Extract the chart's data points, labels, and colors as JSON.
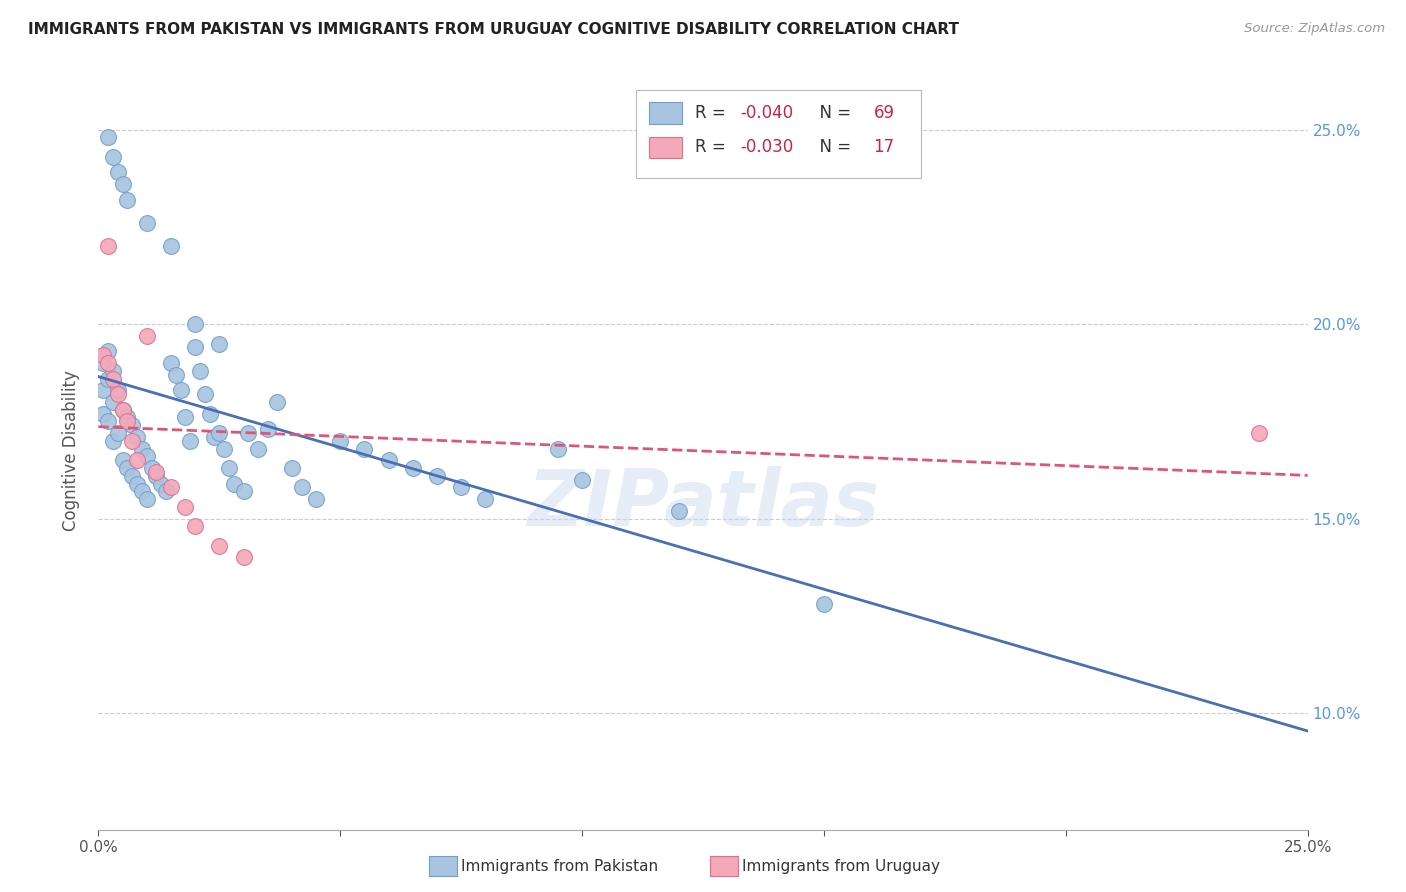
{
  "title": "IMMIGRANTS FROM PAKISTAN VS IMMIGRANTS FROM URUGUAY COGNITIVE DISABILITY CORRELATION CHART",
  "source": "Source: ZipAtlas.com",
  "ylabel": "Cognitive Disability",
  "xmin": 0.0,
  "xmax": 0.25,
  "ymin": 0.07,
  "ymax": 0.265,
  "yticks": [
    0.1,
    0.15,
    0.2,
    0.25
  ],
  "ytick_labels": [
    "10.0%",
    "15.0%",
    "20.0%",
    "25.0%"
  ],
  "xticks": [
    0.0,
    0.05,
    0.1,
    0.15,
    0.2,
    0.25
  ],
  "xtick_labels": [
    "0.0%",
    "",
    "",
    "",
    "",
    "25.0%"
  ],
  "legend_r1_label": "R = ",
  "legend_r1_val": "-0.040",
  "legend_n1_label": "N = ",
  "legend_n1_val": "69",
  "legend_r2_label": "R = ",
  "legend_r2_val": "-0.030",
  "legend_n2_label": "N = ",
  "legend_n2_val": "17",
  "pakistan_color": "#a8c4e0",
  "pakistan_edge_color": "#6fa0cc",
  "uruguay_color": "#f4a8b8",
  "uruguay_edge_color": "#e07090",
  "pakistan_line_color": "#4a6fb5",
  "uruguay_line_color": "#e05575",
  "tick_color": "#5599dd",
  "watermark": "ZIPatlas",
  "bottom_label1": "Immigrants from Pakistan",
  "bottom_label2": "Immigrants from Uruguay",
  "pak_x": [
    0.001,
    0.001,
    0.001,
    0.002,
    0.002,
    0.002,
    0.003,
    0.003,
    0.003,
    0.004,
    0.004,
    0.005,
    0.005,
    0.006,
    0.006,
    0.007,
    0.007,
    0.008,
    0.008,
    0.009,
    0.009,
    0.01,
    0.01,
    0.011,
    0.012,
    0.013,
    0.014,
    0.015,
    0.016,
    0.017,
    0.018,
    0.019,
    0.02,
    0.021,
    0.022,
    0.023,
    0.024,
    0.025,
    0.026,
    0.027,
    0.028,
    0.03,
    0.031,
    0.033,
    0.035,
    0.037,
    0.04,
    0.042,
    0.045,
    0.05,
    0.055,
    0.06,
    0.065,
    0.07,
    0.075,
    0.08,
    0.095,
    0.1,
    0.12,
    0.15,
    0.002,
    0.003,
    0.004,
    0.005,
    0.006,
    0.01,
    0.015,
    0.02,
    0.025
  ],
  "pak_y": [
    0.19,
    0.183,
    0.177,
    0.193,
    0.186,
    0.175,
    0.188,
    0.18,
    0.17,
    0.183,
    0.172,
    0.178,
    0.165,
    0.176,
    0.163,
    0.174,
    0.161,
    0.171,
    0.159,
    0.168,
    0.157,
    0.166,
    0.155,
    0.163,
    0.161,
    0.159,
    0.157,
    0.19,
    0.187,
    0.183,
    0.176,
    0.17,
    0.194,
    0.188,
    0.182,
    0.177,
    0.171,
    0.172,
    0.168,
    0.163,
    0.159,
    0.157,
    0.172,
    0.168,
    0.173,
    0.18,
    0.163,
    0.158,
    0.155,
    0.17,
    0.168,
    0.165,
    0.163,
    0.161,
    0.158,
    0.155,
    0.168,
    0.16,
    0.152,
    0.128,
    0.248,
    0.243,
    0.239,
    0.236,
    0.232,
    0.226,
    0.22,
    0.2,
    0.195
  ],
  "uru_x": [
    0.001,
    0.002,
    0.002,
    0.003,
    0.004,
    0.005,
    0.006,
    0.007,
    0.008,
    0.01,
    0.012,
    0.015,
    0.018,
    0.02,
    0.025,
    0.03,
    0.24
  ],
  "uru_y": [
    0.192,
    0.22,
    0.19,
    0.186,
    0.182,
    0.178,
    0.175,
    0.17,
    0.165,
    0.197,
    0.162,
    0.158,
    0.153,
    0.148,
    0.143,
    0.14,
    0.172
  ]
}
